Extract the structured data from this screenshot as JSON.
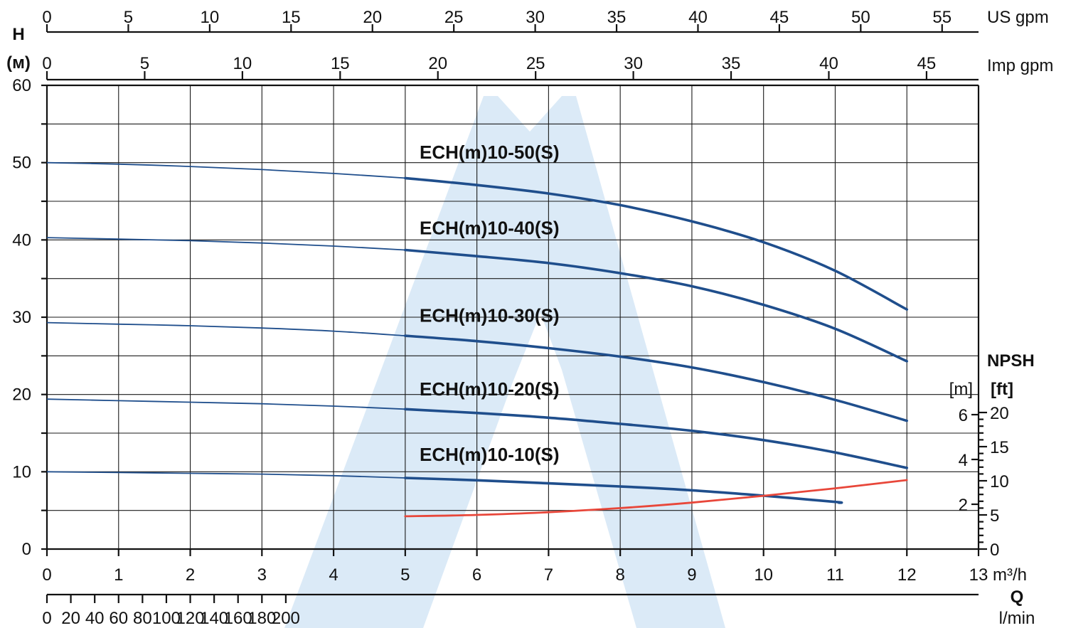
{
  "chart_data": {
    "type": "line",
    "axes": {
      "left_label": "H",
      "left_unit": "(м)",
      "left_ticks": [
        0,
        10,
        20,
        30,
        40,
        50,
        60
      ],
      "bottom_unit_m3h": "m³/h",
      "bottom_ticks_m3h": [
        0,
        1,
        2,
        3,
        4,
        5,
        6,
        7,
        8,
        9,
        10,
        11,
        12,
        13
      ],
      "q_label": "Q",
      "lmin_unit": "l/min",
      "lmin_ticks": [
        0,
        20,
        40,
        60,
        80,
        100,
        120,
        140,
        160,
        180,
        200
      ],
      "us_gpm_unit": "US gpm",
      "us_gpm_ticks": [
        0,
        5,
        10,
        15,
        20,
        25,
        30,
        35,
        40,
        45,
        50,
        55
      ],
      "imp_gpm_unit": "Imp gpm",
      "imp_gpm_ticks": [
        0,
        5,
        10,
        15,
        20,
        25,
        30,
        35,
        40,
        45
      ],
      "npsh_title": "NPSH",
      "npsh_m_unit": "[m]",
      "npsh_ft_unit": "[ft]",
      "npsh_m_ticks": [
        2,
        4,
        6
      ],
      "npsh_ft_ticks": [
        0,
        5,
        10,
        15,
        20
      ]
    },
    "xlim": [
      0,
      13
    ],
    "ylim": [
      0,
      60
    ],
    "grid": true,
    "series": [
      {
        "name": "ECH(m)10-50(S)",
        "color": "#1f4e8c",
        "label_anchor": {
          "x": 5.2,
          "y": 50.5
        },
        "points": [
          [
            0,
            50
          ],
          [
            1,
            49.8
          ],
          [
            2,
            49.5
          ],
          [
            3,
            49.1
          ],
          [
            4,
            48.6
          ],
          [
            5,
            48
          ],
          [
            6,
            47.1
          ],
          [
            7,
            46
          ],
          [
            8,
            44.5
          ],
          [
            9,
            42.4
          ],
          [
            10,
            39.7
          ],
          [
            11,
            36
          ],
          [
            12,
            31
          ]
        ]
      },
      {
        "name": "ECH(m)10-40(S)",
        "color": "#1f4e8c",
        "label_anchor": {
          "x": 5.2,
          "y": 40.7
        },
        "points": [
          [
            0,
            40.3
          ],
          [
            1,
            40.1
          ],
          [
            2,
            39.9
          ],
          [
            3,
            39.6
          ],
          [
            4,
            39.2
          ],
          [
            5,
            38.7
          ],
          [
            6,
            37.9
          ],
          [
            7,
            37
          ],
          [
            8,
            35.7
          ],
          [
            9,
            34
          ],
          [
            10,
            31.6
          ],
          [
            11,
            28.5
          ],
          [
            12,
            24.3
          ]
        ]
      },
      {
        "name": "ECH(m)10-30(S)",
        "color": "#1f4e8c",
        "label_anchor": {
          "x": 5.2,
          "y": 29.4
        },
        "points": [
          [
            0,
            29.3
          ],
          [
            1,
            29.1
          ],
          [
            2,
            28.9
          ],
          [
            3,
            28.6
          ],
          [
            4,
            28.2
          ],
          [
            5,
            27.6
          ],
          [
            6,
            26.9
          ],
          [
            7,
            26
          ],
          [
            8,
            24.9
          ],
          [
            9,
            23.5
          ],
          [
            10,
            21.6
          ],
          [
            11,
            19.3
          ],
          [
            12,
            16.6
          ]
        ]
      },
      {
        "name": "ECH(m)10-20(S)",
        "color": "#1f4e8c",
        "label_anchor": {
          "x": 5.2,
          "y": 19.9
        },
        "points": [
          [
            0,
            19.4
          ],
          [
            1,
            19.2
          ],
          [
            2,
            19
          ],
          [
            3,
            18.8
          ],
          [
            4,
            18.5
          ],
          [
            5,
            18.1
          ],
          [
            6,
            17.6
          ],
          [
            7,
            17
          ],
          [
            8,
            16.2
          ],
          [
            9,
            15.3
          ],
          [
            10,
            14.1
          ],
          [
            11,
            12.5
          ],
          [
            12,
            10.5
          ]
        ]
      },
      {
        "name": "ECH(m)10-10(S)",
        "color": "#1f4e8c",
        "label_anchor": {
          "x": 5.2,
          "y": 11.4
        },
        "points": [
          [
            0,
            10
          ],
          [
            1,
            9.9
          ],
          [
            2,
            9.8
          ],
          [
            3,
            9.7
          ],
          [
            4,
            9.5
          ],
          [
            5,
            9.2
          ],
          [
            6,
            8.9
          ],
          [
            7,
            8.5
          ],
          [
            8,
            8.1
          ],
          [
            9,
            7.6
          ],
          [
            10,
            6.9
          ],
          [
            11,
            6.1
          ],
          [
            11.05,
            6
          ]
        ]
      }
    ],
    "npsh_series": {
      "color": "#e8473a",
      "axis": "ft",
      "points": [
        [
          5,
          4.8
        ],
        [
          6,
          5
        ],
        [
          7,
          5.4
        ],
        [
          8,
          6
        ],
        [
          9,
          6.8
        ],
        [
          10,
          7.8
        ],
        [
          11,
          8.9
        ],
        [
          12,
          10.1
        ]
      ]
    },
    "watermark_color": "#cfe3f4"
  }
}
